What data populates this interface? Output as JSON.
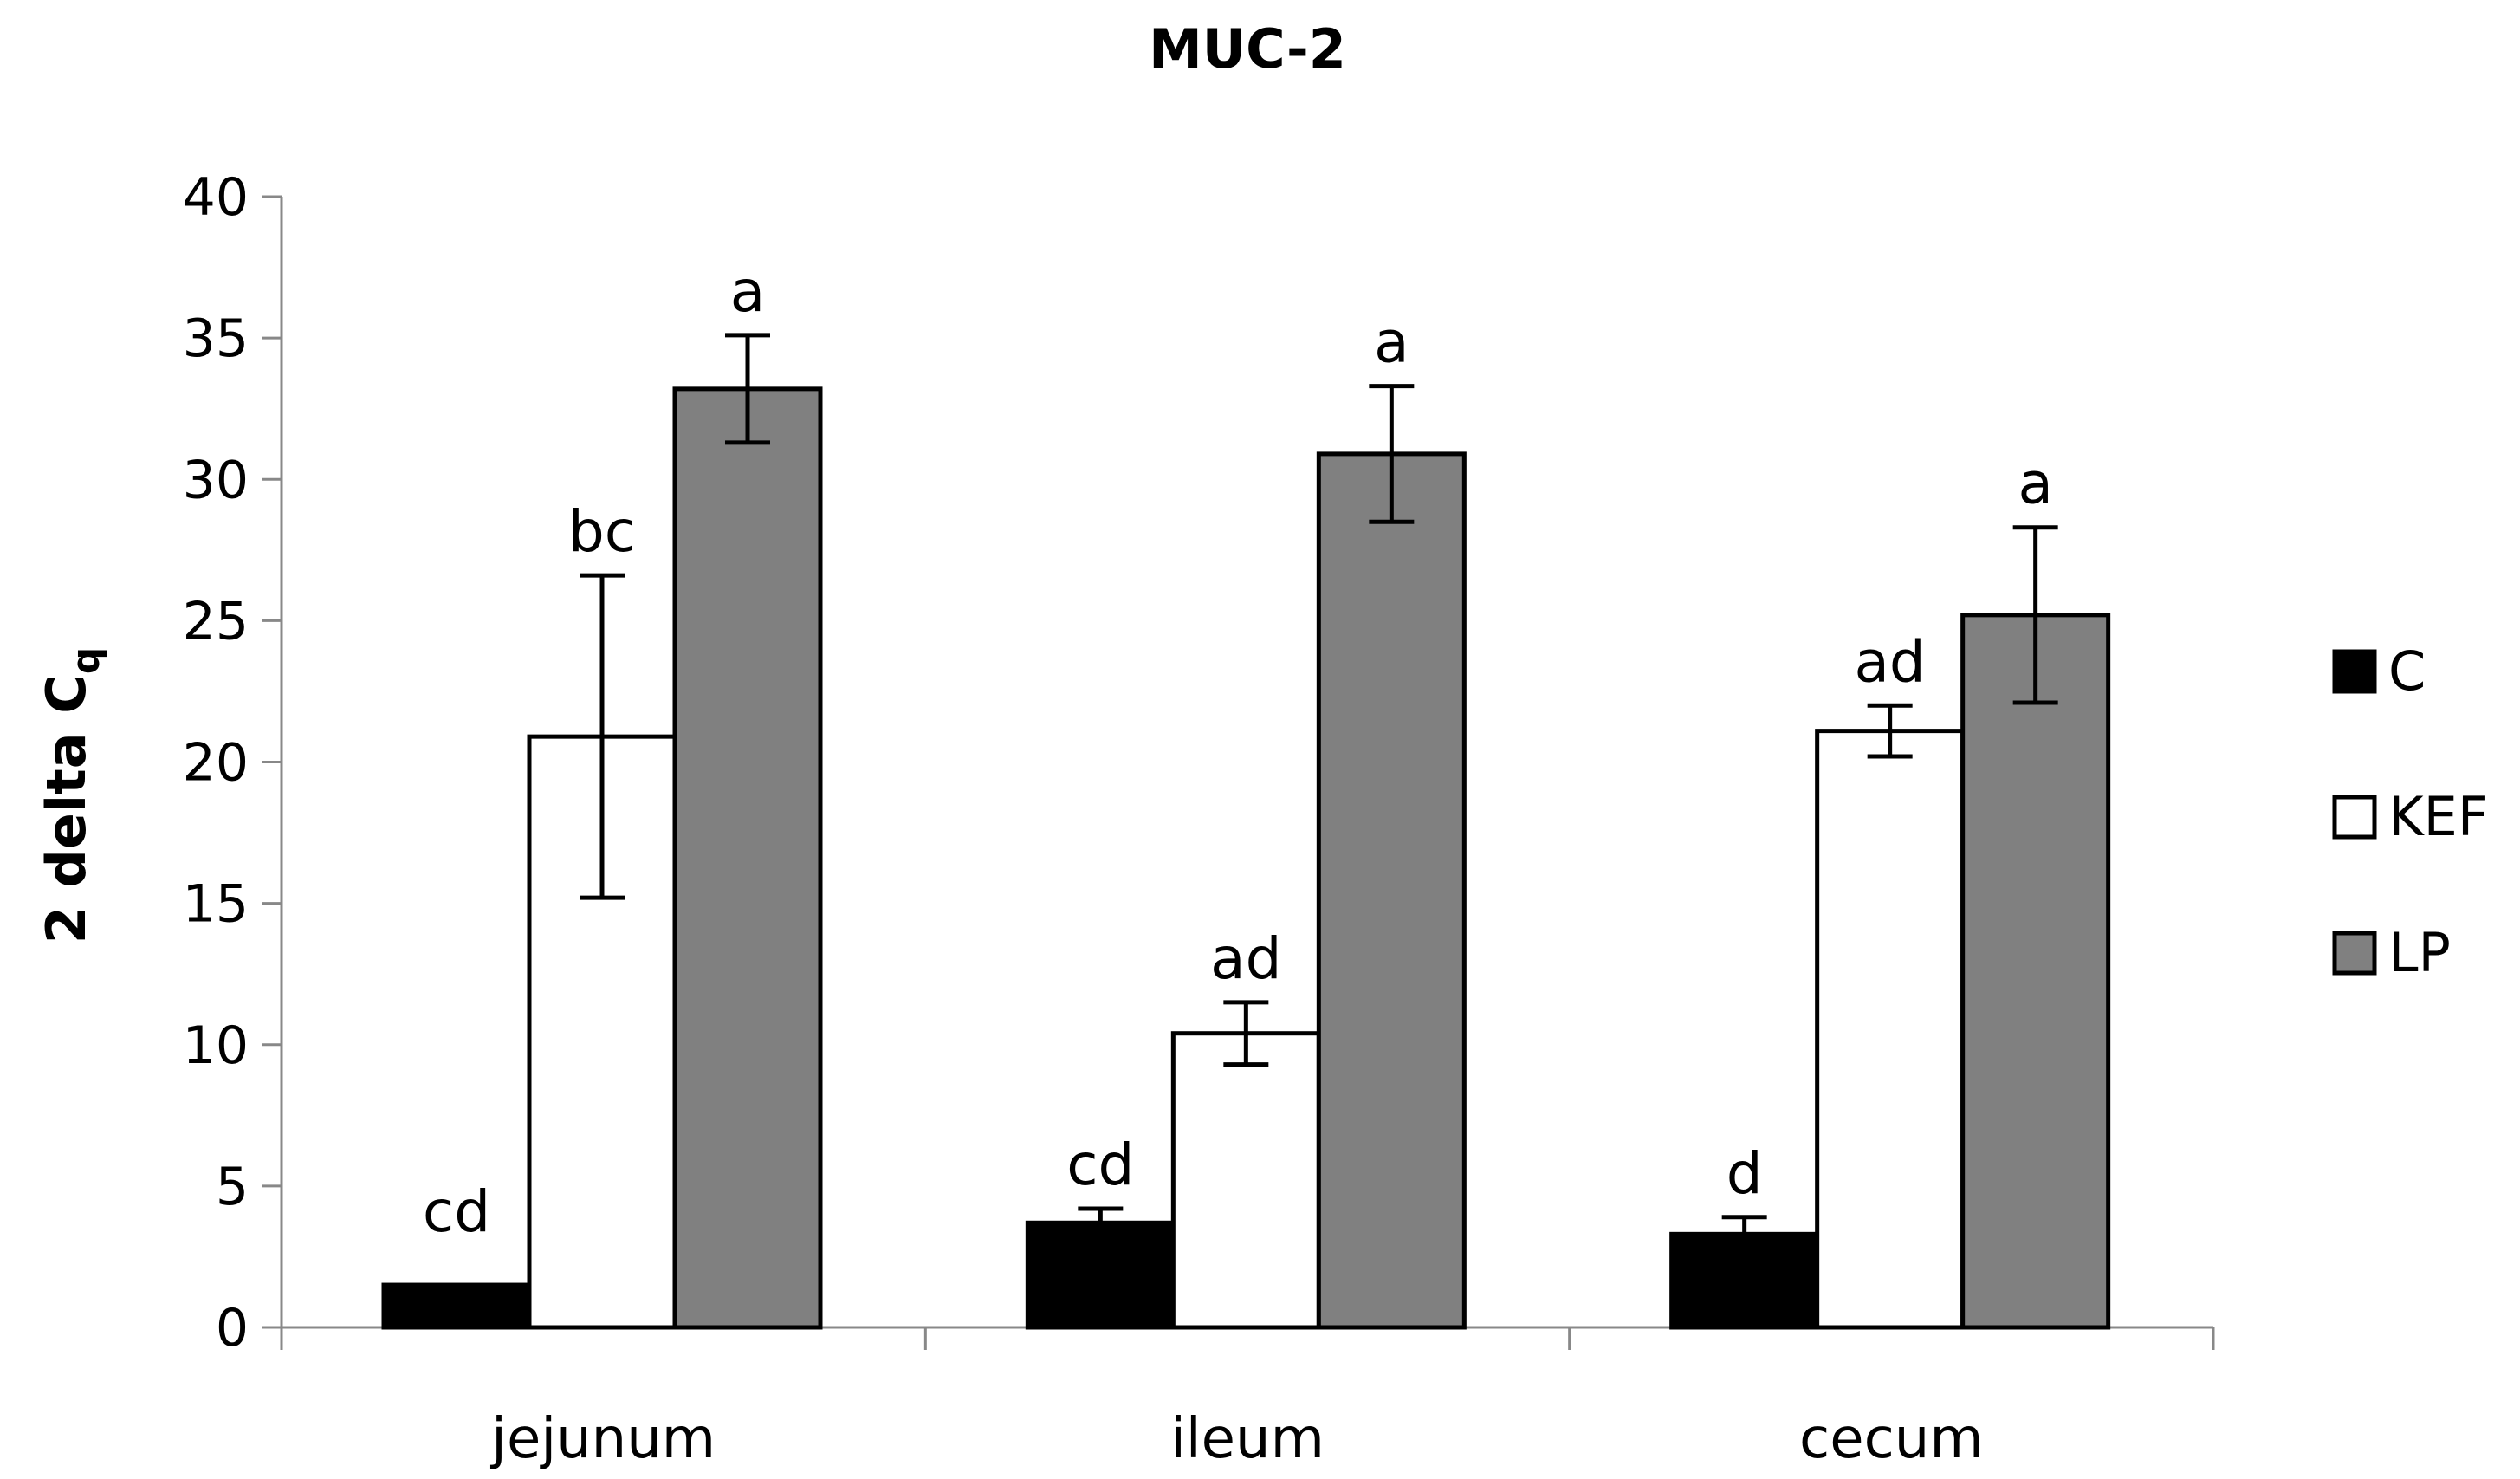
{
  "chart_data": {
    "type": "bar",
    "title": "MUC-2",
    "ylabel": {
      "main": "2 delta C",
      "sub": "q"
    },
    "xlabel": "",
    "ylim": [
      0,
      40
    ],
    "yticks": [
      0,
      5,
      10,
      15,
      20,
      25,
      30,
      35,
      40
    ],
    "categories": [
      "jejunum",
      "ileum",
      "cecum"
    ],
    "series": [
      {
        "name": "C",
        "color": "#000000",
        "values": [
          1.5,
          3.7,
          3.3
        ],
        "errors": [
          0.0,
          0.5,
          0.6
        ],
        "labels": [
          "cd",
          "cd",
          "d"
        ]
      },
      {
        "name": "KEF",
        "color": "#ffffff",
        "values": [
          20.9,
          10.4,
          21.1
        ],
        "errors": [
          5.7,
          1.1,
          0.9
        ],
        "labels": [
          "bc",
          "ad",
          "ad"
        ]
      },
      {
        "name": "LP",
        "color": "#808080",
        "values": [
          33.2,
          30.9,
          25.2
        ],
        "errors": [
          1.9,
          2.4,
          3.1
        ],
        "labels": [
          "a",
          "a",
          "a"
        ]
      }
    ],
    "legend": "right",
    "grid": false
  }
}
